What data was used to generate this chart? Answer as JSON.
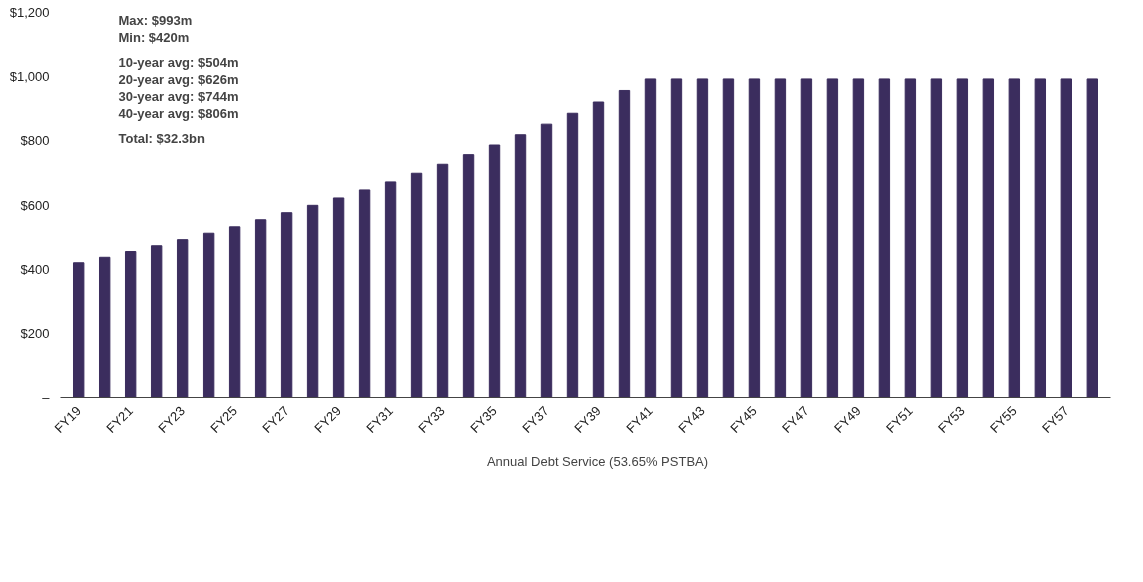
{
  "chart_data": {
    "type": "bar",
    "categories": [
      "FY19",
      null,
      "FY21",
      null,
      "FY23",
      null,
      "FY25",
      null,
      "FY27",
      null,
      "FY29",
      null,
      "FY31",
      null,
      "FY33",
      null,
      "FY35",
      null,
      "FY37",
      null,
      "FY39",
      null,
      "FY41",
      null,
      "FY43",
      null,
      "FY45",
      null,
      "FY47",
      null,
      "FY49",
      null,
      "FY51",
      null,
      "FY53",
      null,
      "FY55",
      null,
      "FY57",
      null
    ],
    "series": [
      {
        "name": "Annual Debt Service (53.65% PSTBA)",
        "color": "#3b2d5e",
        "values": [
          420,
          437,
          455,
          473,
          492,
          512,
          532,
          554,
          576,
          599,
          622,
          647,
          672,
          699,
          727,
          757,
          787,
          819,
          852,
          886,
          921,
          957,
          993,
          993,
          993,
          993,
          993,
          993,
          993,
          993,
          993,
          993,
          993,
          993,
          993,
          993,
          993,
          993,
          993,
          993
        ]
      }
    ],
    "ylim": [
      0,
      1200
    ],
    "yticks": [
      {
        "value": 0,
        "label": "–"
      },
      {
        "value": 200,
        "label": "$200"
      },
      {
        "value": 400,
        "label": "$400"
      },
      {
        "value": 600,
        "label": "$600"
      },
      {
        "value": 800,
        "label": "$800"
      },
      {
        "value": 1000,
        "label": "$1,000"
      },
      {
        "value": 1200,
        "label": "$1,200"
      }
    ],
    "annotations": [
      "Max: $993m",
      "Min:  $420m",
      "10-year avg: $504m",
      "20-year avg: $626m",
      "30-year avg: $744m",
      "40-year avg: $806m",
      "Total: $32.3bn"
    ],
    "grid": false,
    "legend": "bottom"
  }
}
